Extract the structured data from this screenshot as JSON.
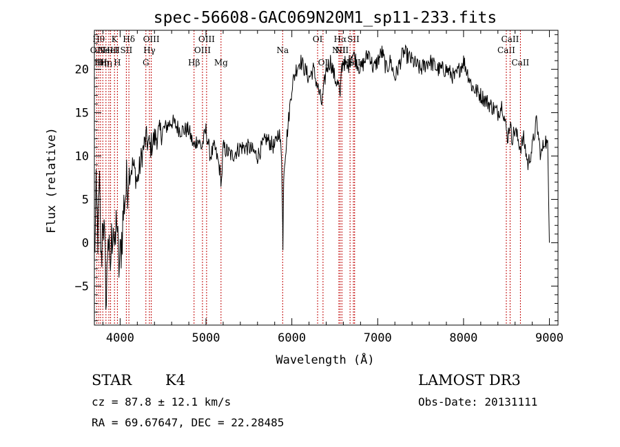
{
  "chart_data": {
    "type": "line",
    "title": "spec-56608-GAC069N20M1_sp11-233.fits",
    "xlabel": "Wavelength (Å)",
    "ylabel": "Flux (relative)",
    "xlim": [
      3700,
      9100
    ],
    "ylim": [
      -9.5,
      24.5
    ],
    "xticks": [
      {
        "value": 4000,
        "label": "4000"
      },
      {
        "value": 5000,
        "label": "5000"
      },
      {
        "value": 6000,
        "label": "6000"
      },
      {
        "value": 7000,
        "label": "7000"
      },
      {
        "value": 8000,
        "label": "8000"
      },
      {
        "value": 9000,
        "label": "9000"
      }
    ],
    "yticks": [
      {
        "value": -5,
        "label": "−5"
      },
      {
        "value": 0,
        "label": "0"
      },
      {
        "value": 5,
        "label": "5"
      },
      {
        "value": 10,
        "label": "10"
      },
      {
        "value": 15,
        "label": "15"
      },
      {
        "value": 20,
        "label": "20"
      }
    ],
    "series": [
      {
        "name": "spectrum",
        "x": [
          3700,
          3720,
          3740,
          3760,
          3780,
          3800,
          3820,
          3840,
          3860,
          3880,
          3900,
          3920,
          3940,
          3960,
          3980,
          4000,
          4050,
          4100,
          4150,
          4200,
          4250,
          4300,
          4350,
          4400,
          4500,
          4600,
          4700,
          4800,
          4860,
          4900,
          4950,
          5000,
          5050,
          5100,
          5150,
          5180,
          5200,
          5300,
          5400,
          5500,
          5600,
          5700,
          5800,
          5850,
          5880,
          5890,
          5896,
          5905,
          5920,
          5950,
          6000,
          6050,
          6100,
          6150,
          6200,
          6250,
          6300,
          6350,
          6400,
          6450,
          6500,
          6550,
          6563,
          6575,
          6600,
          6650,
          6700,
          6750,
          6800,
          6850,
          6900,
          6950,
          7000,
          7050,
          7100,
          7150,
          7200,
          7300,
          7400,
          7500,
          7600,
          7700,
          7800,
          7900,
          8000,
          8100,
          8200,
          8300,
          8400,
          8450,
          8498,
          8510,
          8542,
          8560,
          8600,
          8662,
          8700,
          8750,
          8800,
          8850,
          8900,
          8950,
          8980,
          9000
        ],
        "values": [
          -2,
          5,
          1,
          6,
          -3,
          4,
          -1,
          -7,
          2,
          -4,
          0,
          3,
          -2,
          4,
          -3,
          -2,
          5,
          8,
          9,
          7,
          10,
          12,
          11,
          12,
          13,
          14,
          13,
          13,
          11,
          12,
          11,
          13,
          10,
          11,
          9,
          7,
          11,
          10,
          11,
          11,
          10,
          12,
          11,
          13,
          10,
          5,
          -1,
          8,
          10,
          13,
          18,
          20,
          21,
          20,
          19,
          20,
          18,
          16,
          20,
          21,
          19,
          18,
          16,
          20,
          21,
          20,
          22,
          21,
          20,
          21,
          22,
          20,
          21,
          22,
          20,
          21,
          19,
          22,
          21,
          20,
          21,
          20,
          20,
          19,
          21,
          18,
          17,
          16,
          15,
          16,
          13,
          12,
          14,
          12,
          13,
          11,
          12,
          9,
          11,
          14,
          10,
          12,
          11,
          0
        ],
        "color": "#000000"
      }
    ],
    "line_markers": [
      {
        "x": 3727,
        "label": "OII",
        "row": 2
      },
      {
        "x": 3750,
        "label": "Hθ",
        "row": 1
      },
      {
        "x": 3771,
        "label": "Hη",
        "row": 3
      },
      {
        "x": 3798,
        "label": "Hη",
        "row": 3
      },
      {
        "x": 3835,
        "label": "Hη",
        "row": 3
      },
      {
        "x": 3869,
        "label": "NeIII",
        "row": 2
      },
      {
        "x": 3889,
        "label": "HeI",
        "row": 2
      },
      {
        "x": 3934,
        "label": "K",
        "row": 1
      },
      {
        "x": 3968,
        "label": "H",
        "row": 3
      },
      {
        "x": 4072,
        "label": "SII",
        "row": 2
      },
      {
        "x": 4102,
        "label": "Hδ",
        "row": 1
      },
      {
        "x": 4300,
        "label": "G",
        "row": 3
      },
      {
        "x": 4341,
        "label": "Hγ",
        "row": 2
      },
      {
        "x": 4363,
        "label": "OIII",
        "row": 1
      },
      {
        "x": 4861,
        "label": "Hβ",
        "row": 3
      },
      {
        "x": 4959,
        "label": "OIII",
        "row": 2
      },
      {
        "x": 5007,
        "label": "OIII",
        "row": 1
      },
      {
        "x": 5175,
        "label": "Mg",
        "row": 3
      },
      {
        "x": 5893,
        "label": "Na",
        "row": 2
      },
      {
        "x": 6300,
        "label": "OI",
        "row": 1
      },
      {
        "x": 6363,
        "label": "OI",
        "row": 3
      },
      {
        "x": 6548,
        "label": "NII",
        "row": 2
      },
      {
        "x": 6563,
        "label": "Hα",
        "row": 1
      },
      {
        "x": 6583,
        "label": "NII",
        "row": 2
      },
      {
        "x": 6678,
        "label": "HeI",
        "row": 3
      },
      {
        "x": 6717,
        "label": "SII",
        "row": 1
      },
      {
        "x": 6731,
        "label": "SII",
        "row": 3
      },
      {
        "x": 8498,
        "label": "CaII",
        "row": 2
      },
      {
        "x": 8542,
        "label": "CaII",
        "row": 1
      },
      {
        "x": 8662,
        "label": "CaII",
        "row": 3
      }
    ],
    "line_color": "#c00000"
  },
  "info": {
    "class": "STAR",
    "subclass": "K4",
    "survey": "LAMOST DR3",
    "cz": "cz = 87.8 ± 12.1 km/s",
    "obs_date": "Obs-Date: 20131111",
    "radec": "RA =  69.67647, DEC =  22.28485"
  }
}
